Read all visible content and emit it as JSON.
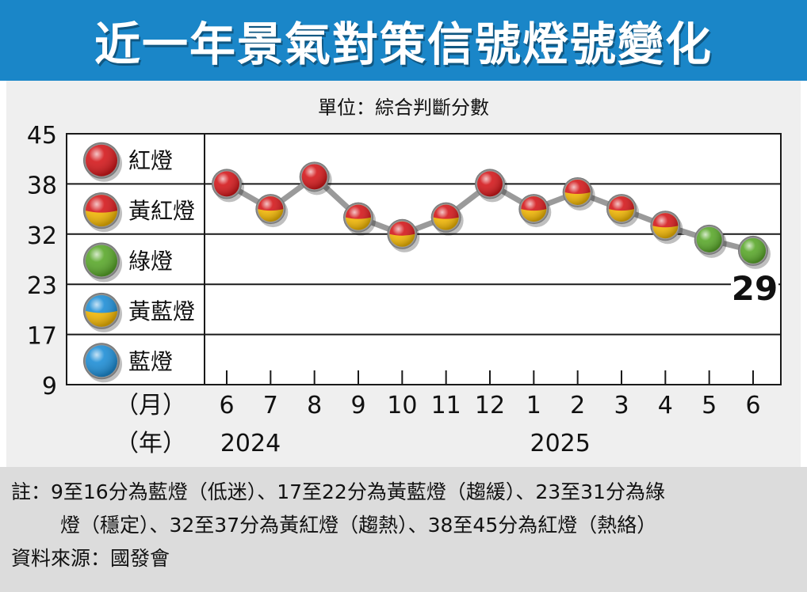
{
  "header": {
    "title": "近一年景氣對策信號燈號變化"
  },
  "chart_data": {
    "type": "line",
    "unit_label": "單位：綜合判斷分數",
    "y_ticks": [
      45,
      38,
      32,
      23,
      17,
      9
    ],
    "ylim": [
      9,
      45
    ],
    "bands": [
      {
        "label": "紅燈",
        "min": 38,
        "max": 45,
        "light": "red"
      },
      {
        "label": "黃紅燈",
        "min": 32,
        "max": 38,
        "light": "yellow-red"
      },
      {
        "label": "綠燈",
        "min": 23,
        "max": 32,
        "light": "green"
      },
      {
        "label": "黃藍燈",
        "min": 17,
        "max": 23,
        "light": "yellow-blue"
      },
      {
        "label": "藍燈",
        "min": 9,
        "max": 17,
        "light": "blue"
      }
    ],
    "x_month_label": "（月）",
    "x_year_label": "（年）",
    "months": [
      "6",
      "7",
      "8",
      "9",
      "10",
      "11",
      "12",
      "1",
      "2",
      "3",
      "4",
      "5",
      "6"
    ],
    "years": [
      {
        "label": "2024",
        "index": 0
      },
      {
        "label": "2025",
        "index": 8
      }
    ],
    "values": [
      38,
      35,
      39,
      34,
      32,
      34,
      38,
      35,
      37,
      35,
      33,
      31,
      29
    ],
    "lights": [
      "red",
      "yellow-red",
      "red",
      "yellow-red",
      "yellow-red",
      "yellow-red",
      "red",
      "yellow-red",
      "yellow-red",
      "yellow-red",
      "yellow-red",
      "green",
      "green"
    ],
    "last_value_label": "29",
    "colors": {
      "red": "#d4191c",
      "yellow": "#f2b705",
      "green": "#5aa82b",
      "blue": "#1e8ed6",
      "line": "#9a9a9a"
    }
  },
  "notes": {
    "line1": "註：9至16分為藍燈（低迷）、17至22分為黃藍燈（趨緩）、23至31分為綠",
    "line2": "燈（穩定）、32至37分為黃紅燈（趨熱）、38至45分為紅燈（熱絡）",
    "source": "資料來源：國發會"
  }
}
